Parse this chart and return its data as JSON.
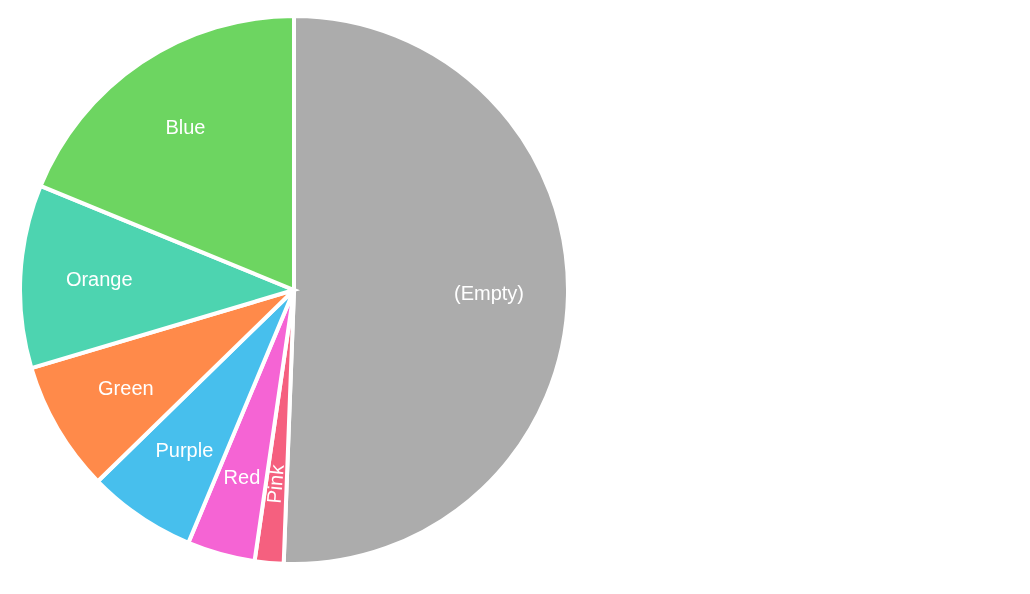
{
  "chart_data": {
    "type": "pie",
    "categories": [
      "(Empty)",
      "Pink",
      "Red",
      "Purple",
      "Green",
      "Orange",
      "Blue"
    ],
    "values": [
      50.6,
      1.7,
      4.0,
      6.4,
      7.7,
      10.8,
      18.8
    ],
    "colors": [
      "#acacac",
      "#f5607f",
      "#f564d4",
      "#47bfed",
      "#ff8a4a",
      "#4dd4b0",
      "#6dd561"
    ]
  }
}
